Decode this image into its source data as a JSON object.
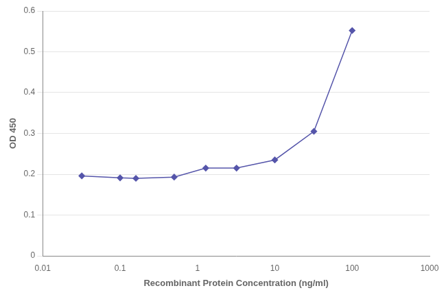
{
  "chart_data": {
    "type": "line",
    "x_label": "Recombinant Protein Concentration (ng/ml)",
    "y_label": "OD 450",
    "x": [
      0.032,
      0.1,
      0.16,
      0.5,
      1.28,
      3.2,
      10,
      32,
      100
    ],
    "series": [
      {
        "values": [
          0.196,
          0.191,
          0.19,
          0.193,
          0.215,
          0.215,
          0.235,
          0.305,
          0.552
        ],
        "color": "#5555aa",
        "marker": "diamond",
        "line_style": "solid"
      }
    ],
    "log": "x",
    "xlim": [
      0.01,
      1000
    ],
    "xticks": [
      0.01,
      0.1,
      1,
      10,
      100,
      1000
    ],
    "ylim": [
      0,
      0.6
    ],
    "yticks": [
      0,
      0.1,
      0.2,
      0.3,
      0.4,
      0.5,
      0.6
    ],
    "grid": "y"
  }
}
